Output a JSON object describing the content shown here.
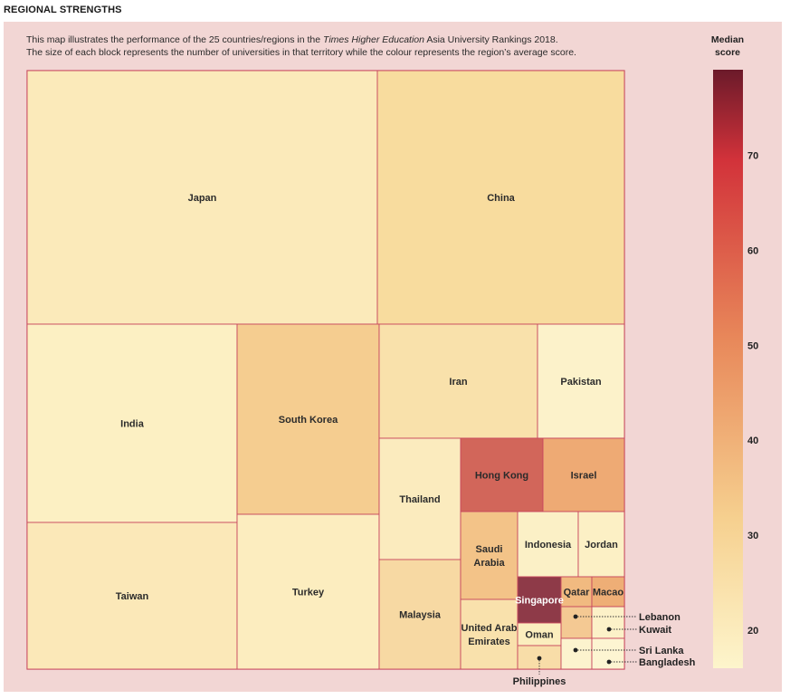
{
  "heading": "REGIONAL STRENGTHS",
  "intro": {
    "line1_a": "This map illustrates the performance of the 25 countries/regions in the ",
    "line1_em": "Times Higher Education",
    "line1_b": " Asia University Rankings 2018.",
    "line2": "The size of each block represents the number of universities in that territory while the colour represents the region’s average score."
  },
  "colorbar": {
    "title1": "Median",
    "title2": "score",
    "min": 16,
    "max": 79,
    "ticks": [
      "20",
      "30",
      "40",
      "50",
      "60",
      "70"
    ],
    "colors": {
      "low": "#fdf5cc",
      "mid1": "#f6d08f",
      "mid2": "#e8885a",
      "mid3": "#d2323a",
      "high": "#6b1a2a"
    }
  },
  "chart_data": {
    "type": "treemap",
    "title": "REGIONAL STRENGTHS",
    "size_measure": "number of universities",
    "color_measure": "median score",
    "items": [
      {
        "name": "Japan",
        "color": "#fbeaba"
      },
      {
        "name": "China",
        "color": "#f8dc9e"
      },
      {
        "name": "India",
        "color": "#fcf0c3"
      },
      {
        "name": "South Korea",
        "color": "#f5cd90"
      },
      {
        "name": "Iran",
        "color": "#f9e1ab"
      },
      {
        "name": "Pakistan",
        "color": "#fcf2ca"
      },
      {
        "name": "Taiwan",
        "color": "#fbe8b8"
      },
      {
        "name": "Turkey",
        "color": "#fcedbf"
      },
      {
        "name": "Thailand",
        "color": "#fbebbe"
      },
      {
        "name": "Malaysia",
        "color": "#f7d9a3"
      },
      {
        "name": "Hong Kong",
        "color": "#d2665a"
      },
      {
        "name": "Israel",
        "color": "#eeaa74"
      },
      {
        "name": "Saudi Arabia",
        "color": "#f3c388"
      },
      {
        "name": "Indonesia",
        "color": "#fbf0c6"
      },
      {
        "name": "Jordan",
        "color": "#fcf0c5"
      },
      {
        "name": "Singapore",
        "color": "#8e3a48"
      },
      {
        "name": "Qatar",
        "color": "#f1ba80"
      },
      {
        "name": "Macao",
        "color": "#eeae76"
      },
      {
        "name": "United Arab Emirates",
        "color": "#f9e1ac"
      },
      {
        "name": "Oman",
        "color": "#fbeebe"
      },
      {
        "name": "Lebanon",
        "color": "#f4c993"
      },
      {
        "name": "Kuwait",
        "color": "#fcf1c8"
      },
      {
        "name": "Sri Lanka",
        "color": "#fcf3ce"
      },
      {
        "name": "Bangladesh",
        "color": "#fdf5d2"
      },
      {
        "name": "Philippines",
        "color": "#f8dda8"
      }
    ],
    "labels": {
      "Japan": "Japan",
      "China": "China",
      "India": "India",
      "South Korea": "South Korea",
      "Iran": "Iran",
      "Pakistan": "Pakistan",
      "Taiwan": "Taiwan",
      "Turkey": "Turkey",
      "Thailand": "Thailand",
      "Malaysia": "Malaysia",
      "Hong Kong": "Hong Kong",
      "Israel": "Israel",
      "Saudi Arabia": [
        "Saudi",
        "Arabia"
      ],
      "Indonesia": "Indonesia",
      "Jordan": "Jordan",
      "Singapore": "Singapore",
      "Qatar": "Qatar",
      "Macao": "Macao",
      "United Arab Emirates": [
        "United Arab",
        "Emirates"
      ],
      "Oman": "Oman"
    },
    "callouts": [
      "Lebanon",
      "Kuwait",
      "Sri Lanka",
      "Bangladesh",
      "Philippines"
    ]
  }
}
